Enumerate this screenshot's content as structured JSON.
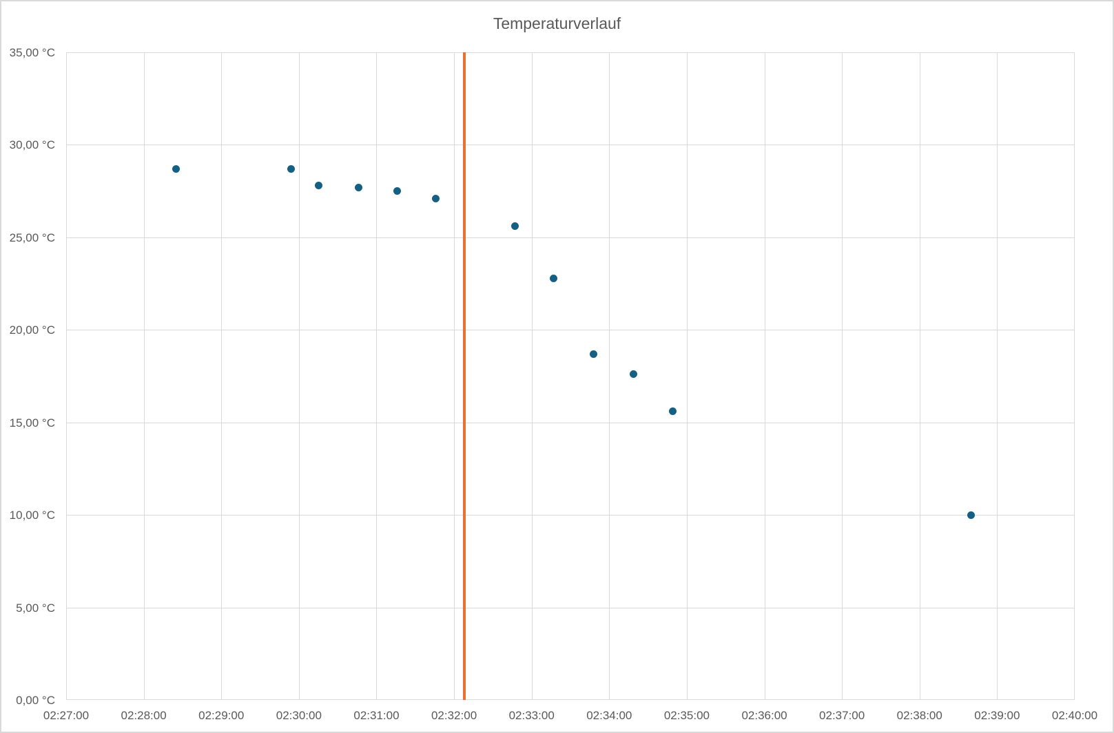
{
  "chart": {
    "colors": {
      "background": "#ffffff",
      "border": "#d9d9d9",
      "gridline": "#d9d9d9",
      "axis_text": "#595959",
      "title_text": "#595959",
      "point": "#156082",
      "event_line": "#e97132"
    }
  },
  "chart_data": {
    "type": "scatter",
    "title": "Temperaturverlauf",
    "xlabel": "",
    "ylabel": "",
    "grid": true,
    "legend": false,
    "x_axis": {
      "type": "time",
      "min": "02:27:00",
      "max": "02:40:00",
      "tick_interval": "00:01:00",
      "tick_labels": [
        "02:27:00",
        "02:28:00",
        "02:29:00",
        "02:30:00",
        "02:31:00",
        "02:32:00",
        "02:33:00",
        "02:34:00",
        "02:35:00",
        "02:36:00",
        "02:37:00",
        "02:38:00",
        "02:39:00",
        "02:40:00"
      ]
    },
    "y_axis": {
      "min": 0,
      "max": 35,
      "tick_interval": 5,
      "ticks": [
        {
          "value": 35,
          "label": "35,00 °C"
        },
        {
          "value": 30,
          "label": "30,00 °C"
        },
        {
          "value": 25,
          "label": "25,00 °C"
        },
        {
          "value": 20,
          "label": "20,00 °C"
        },
        {
          "value": 15,
          "label": "15,00 °C"
        },
        {
          "value": 10,
          "label": "10,00 °C"
        },
        {
          "value": 5,
          "label": "5,00 °C"
        },
        {
          "value": 0,
          "label": "0,00 °C"
        }
      ]
    },
    "series": [
      {
        "marker": "circle",
        "color": "#156082",
        "points": [
          {
            "time": "02:28:25",
            "temp_c": 28.7
          },
          {
            "time": "02:29:54",
            "temp_c": 28.7
          },
          {
            "time": "02:30:15",
            "temp_c": 27.8
          },
          {
            "time": "02:30:46",
            "temp_c": 27.7
          },
          {
            "time": "02:31:16",
            "temp_c": 27.5
          },
          {
            "time": "02:31:46",
            "temp_c": 27.1
          },
          {
            "time": "02:32:47",
            "temp_c": 25.6
          },
          {
            "time": "02:33:17",
            "temp_c": 22.8
          },
          {
            "time": "02:33:48",
            "temp_c": 18.7
          },
          {
            "time": "02:34:19",
            "temp_c": 17.6
          },
          {
            "time": "02:34:49",
            "temp_c": 15.6
          },
          {
            "time": "02:38:40",
            "temp_c": 10.0
          }
        ]
      }
    ],
    "annotations": [
      {
        "type": "vertical_line",
        "time": "02:32:08",
        "color": "#e97132"
      }
    ]
  }
}
